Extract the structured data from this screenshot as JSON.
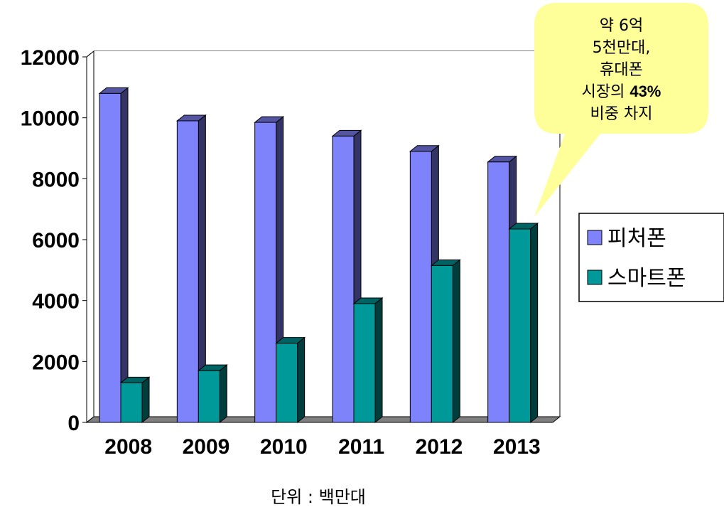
{
  "chart_data": {
    "type": "bar",
    "categories": [
      "2008",
      "2009",
      "2010",
      "2011",
      "2012",
      "2013"
    ],
    "series": [
      {
        "name": "피처폰",
        "values": [
          10800,
          9900,
          9850,
          9400,
          8900,
          8550
        ],
        "color": "#7f83fb"
      },
      {
        "name": "스마트폰",
        "values": [
          1300,
          1700,
          2600,
          3900,
          5150,
          6350
        ],
        "color": "#009999"
      }
    ],
    "ylim": [
      0,
      12000
    ],
    "yticks": [
      "0",
      "2000",
      "4000",
      "6000",
      "8000",
      "10000",
      "12000"
    ],
    "grid": true,
    "legend_position": "right",
    "callout": {
      "lines": [
        [
          {
            "text": "약 6억",
            "bold": false
          }
        ],
        [
          {
            "text": "5천만대,",
            "bold": false
          }
        ],
        [
          {
            "text": "휴대폰",
            "bold": false
          }
        ],
        [
          {
            "text": "시장의 ",
            "bold": false
          },
          {
            "text": "43%",
            "bold": true
          }
        ],
        [
          {
            "text": "비중 차지",
            "bold": false
          }
        ]
      ],
      "fill": "#ffff99"
    },
    "unit_note": "단위 : 백만대"
  }
}
